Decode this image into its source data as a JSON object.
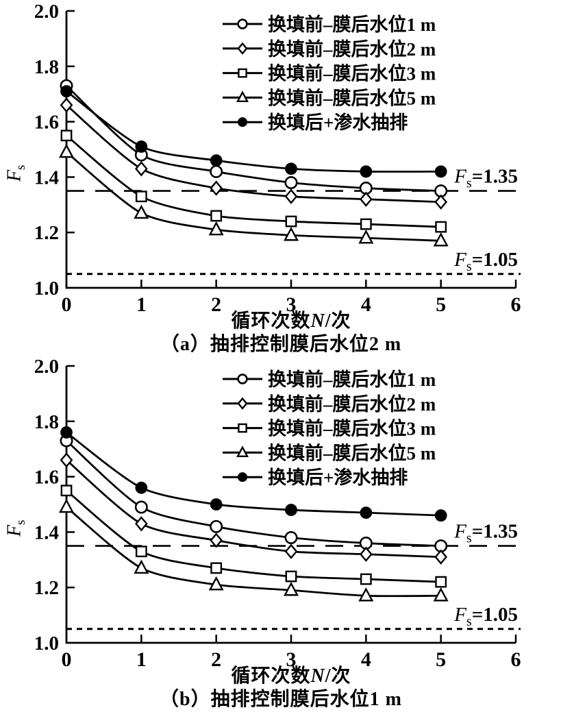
{
  "ink": "#000000",
  "background": "#ffffff",
  "chart_data": [
    {
      "id": "a",
      "type": "line",
      "caption": "（a）抽排控制膜后水位2 m",
      "xlabel": {
        "pre": "循环次数",
        "italic": "N",
        "post": "/次"
      },
      "ylabel": {
        "italic": "F",
        "sub": "s"
      },
      "xlim": [
        0,
        6
      ],
      "ylim": [
        1.0,
        2.0
      ],
      "x_ticks": [
        "0",
        "1",
        "2",
        "3",
        "4",
        "5",
        "6"
      ],
      "y_ticks": [
        "1.0",
        "1.2",
        "1.4",
        "1.6",
        "1.8",
        "2.0"
      ],
      "grid": "off",
      "legend_position": "top-right-inside",
      "x": [
        0,
        1,
        2,
        3,
        4,
        5
      ],
      "series": [
        {
          "name": "换填前–膜后水位1 m",
          "marker": "circle-open",
          "values": [
            1.73,
            1.48,
            1.42,
            1.38,
            1.36,
            1.35
          ]
        },
        {
          "name": "换填前–膜后水位2 m",
          "marker": "diamond-open",
          "values": [
            1.66,
            1.43,
            1.36,
            1.33,
            1.32,
            1.31
          ]
        },
        {
          "name": "换填前–膜后水位3 m",
          "marker": "square-open",
          "values": [
            1.55,
            1.33,
            1.26,
            1.24,
            1.23,
            1.22
          ]
        },
        {
          "name": "换填前–膜后水位5 m",
          "marker": "triangle-open",
          "values": [
            1.49,
            1.27,
            1.21,
            1.19,
            1.18,
            1.17
          ]
        },
        {
          "name": "换填后+渗水抽排",
          "marker": "circle-filled",
          "values": [
            1.71,
            1.51,
            1.46,
            1.43,
            1.42,
            1.42
          ]
        }
      ],
      "reference_lines": [
        {
          "value": 1.35,
          "style": "long-dash",
          "label": {
            "italic": "F",
            "sub": "s",
            "text": "=1.35"
          }
        },
        {
          "value": 1.05,
          "style": "short-dash",
          "label": {
            "italic": "F",
            "sub": "s",
            "text": "=1.05"
          }
        }
      ]
    },
    {
      "id": "b",
      "type": "line",
      "caption": "（b）抽排控制膜后水位1 m",
      "xlabel": {
        "pre": "循环次数",
        "italic": "N",
        "post": "/次"
      },
      "ylabel": {
        "italic": "F",
        "sub": "s"
      },
      "xlim": [
        0,
        6
      ],
      "ylim": [
        1.0,
        2.0
      ],
      "x_ticks": [
        "0",
        "1",
        "2",
        "3",
        "4",
        "5",
        "6"
      ],
      "y_ticks": [
        "1.0",
        "1.2",
        "1.4",
        "1.6",
        "1.8",
        "2.0"
      ],
      "grid": "off",
      "legend_position": "top-right-inside",
      "x": [
        0,
        1,
        2,
        3,
        4,
        5
      ],
      "series": [
        {
          "name": "换填前–膜后水位1 m",
          "marker": "circle-open",
          "values": [
            1.73,
            1.49,
            1.42,
            1.38,
            1.36,
            1.35
          ]
        },
        {
          "name": "换填前–膜后水位2 m",
          "marker": "diamond-open",
          "values": [
            1.66,
            1.43,
            1.37,
            1.33,
            1.32,
            1.31
          ]
        },
        {
          "name": "换填前–膜后水位3 m",
          "marker": "square-open",
          "values": [
            1.55,
            1.33,
            1.27,
            1.24,
            1.23,
            1.22
          ]
        },
        {
          "name": "换填前–膜后水位5 m",
          "marker": "triangle-open",
          "values": [
            1.49,
            1.27,
            1.21,
            1.19,
            1.17,
            1.17
          ]
        },
        {
          "name": "换填后+渗水抽排",
          "marker": "circle-filled",
          "values": [
            1.76,
            1.56,
            1.5,
            1.48,
            1.47,
            1.46
          ]
        }
      ],
      "reference_lines": [
        {
          "value": 1.35,
          "style": "long-dash",
          "label": {
            "italic": "F",
            "sub": "s",
            "text": "=1.35"
          }
        },
        {
          "value": 1.05,
          "style": "short-dash",
          "label": {
            "italic": "F",
            "sub": "s",
            "text": "=1.05"
          }
        }
      ]
    }
  ]
}
